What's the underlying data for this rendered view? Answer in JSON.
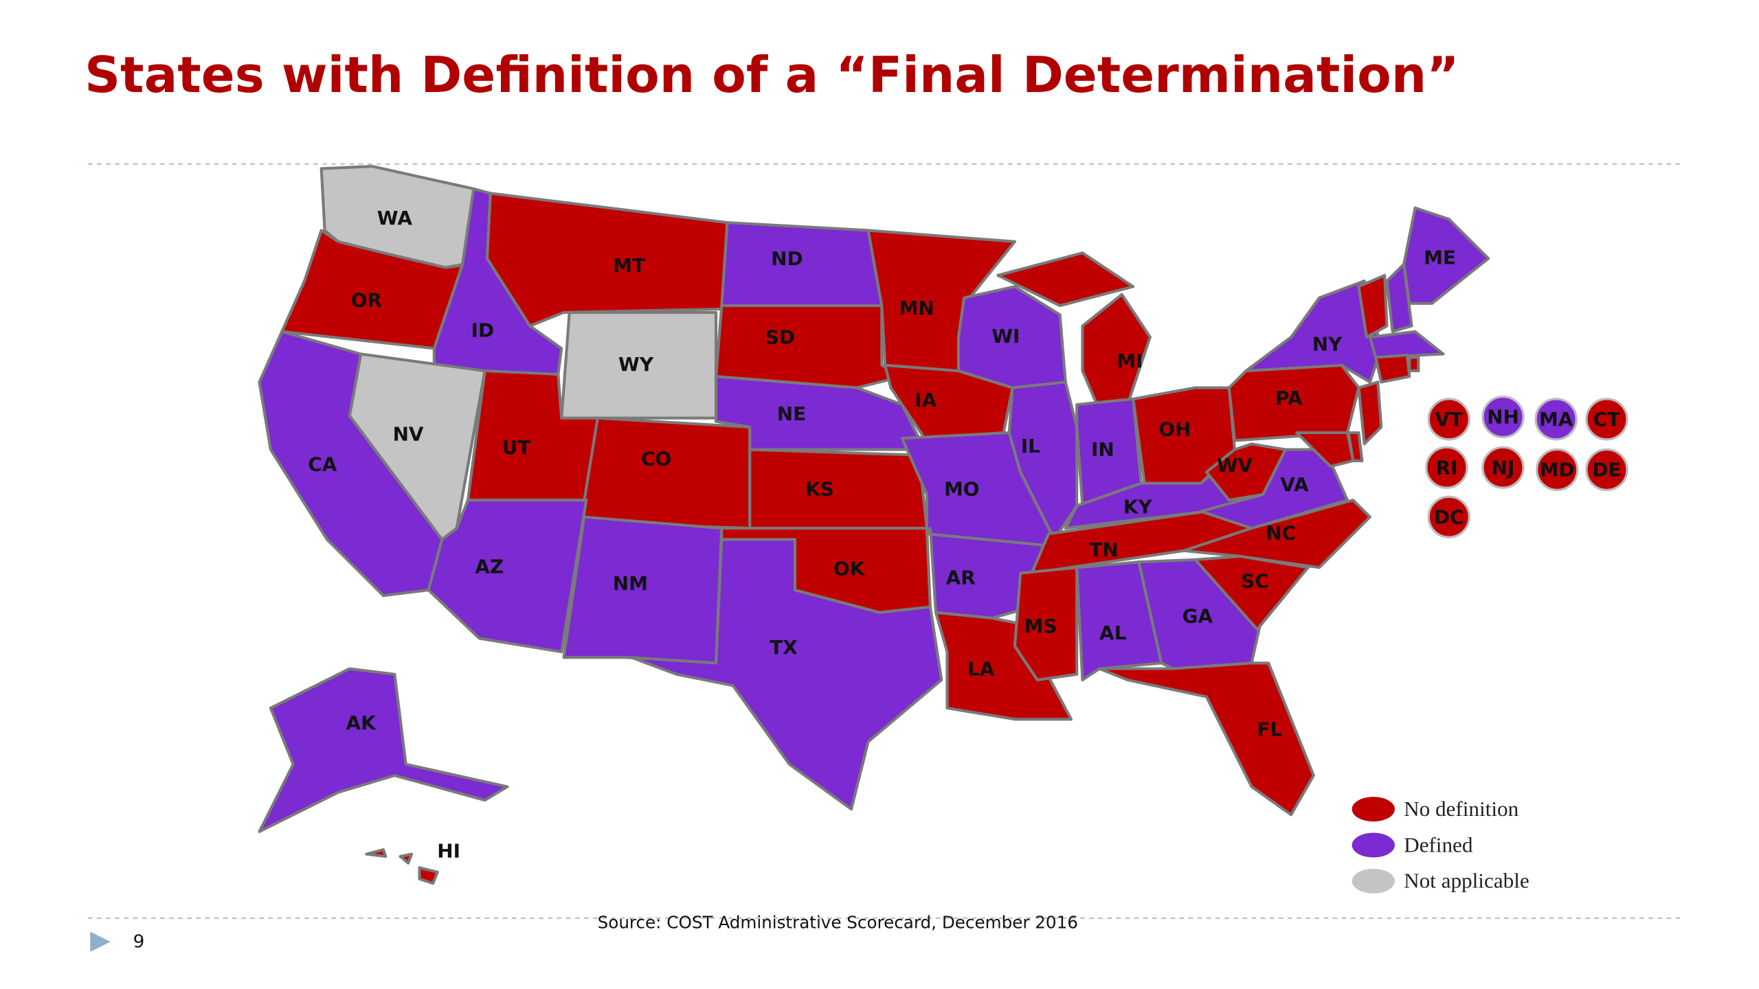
{
  "header": {
    "title": "States with Definition of a “Final Determination”"
  },
  "legend": [
    {
      "label": "No definition",
      "color": "#c00000"
    },
    {
      "label": "Defined",
      "color": "#7b2bd1"
    },
    {
      "label": "Not applicable",
      "color": "#c4c4c4"
    }
  ],
  "states": [
    {
      "label": "WA",
      "status": "Not applicable"
    },
    {
      "label": "OR",
      "status": "No definition"
    },
    {
      "label": "ID",
      "status": "Defined"
    },
    {
      "label": "MT",
      "status": "No definition"
    },
    {
      "label": "ND",
      "status": "Defined"
    },
    {
      "label": "SD",
      "status": "No definition"
    },
    {
      "label": "WY",
      "status": "Not applicable"
    },
    {
      "label": "NV",
      "status": "Not applicable"
    },
    {
      "label": "CA",
      "status": "Defined"
    },
    {
      "label": "UT",
      "status": "No definition"
    },
    {
      "label": "CO",
      "status": "No definition"
    },
    {
      "label": "AZ",
      "status": "Defined"
    },
    {
      "label": "NM",
      "status": "Defined"
    },
    {
      "label": "NE",
      "status": "Defined"
    },
    {
      "label": "KS",
      "status": "No definition"
    },
    {
      "label": "OK",
      "status": "No definition"
    },
    {
      "label": "TX",
      "status": "Defined"
    },
    {
      "label": "MN",
      "status": "No definition"
    },
    {
      "label": "IA",
      "status": "No definition"
    },
    {
      "label": "MO",
      "status": "Defined"
    },
    {
      "label": "AR",
      "status": "Defined"
    },
    {
      "label": "LA",
      "status": "No definition"
    },
    {
      "label": "WI",
      "status": "Defined"
    },
    {
      "label": "IL",
      "status": "Defined"
    },
    {
      "label": "MI",
      "status": "No definition"
    },
    {
      "label": "IN",
      "status": "Defined"
    },
    {
      "label": "OH",
      "status": "No definition"
    },
    {
      "label": "KY",
      "status": "Defined"
    },
    {
      "label": "TN",
      "status": "No definition"
    },
    {
      "label": "MS",
      "status": "No definition"
    },
    {
      "label": "AL",
      "status": "Defined"
    },
    {
      "label": "GA",
      "status": "Defined"
    },
    {
      "label": "FL",
      "status": "No definition"
    },
    {
      "label": "SC",
      "status": "No definition"
    },
    {
      "label": "NC",
      "status": "No definition"
    },
    {
      "label": "VA",
      "status": "Defined"
    },
    {
      "label": "WV",
      "status": "No definition"
    },
    {
      "label": "PA",
      "status": "No definition"
    },
    {
      "label": "NY",
      "status": "Defined"
    },
    {
      "label": "ME",
      "status": "Defined"
    },
    {
      "label": "AK",
      "status": "Defined"
    },
    {
      "label": "HI",
      "status": "No definition"
    },
    {
      "label": "VT",
      "status": "No definition"
    },
    {
      "label": "NH",
      "status": "Defined"
    },
    {
      "label": "MA",
      "status": "Defined"
    },
    {
      "label": "CT",
      "status": "No definition"
    },
    {
      "label": "RI",
      "status": "No definition"
    },
    {
      "label": "NJ",
      "status": "No definition"
    },
    {
      "label": "MD",
      "status": "No definition"
    },
    {
      "label": "DE",
      "status": "No definition"
    },
    {
      "label": "DC",
      "status": "No definition"
    }
  ],
  "source": "Source: COST Administrative Scorecard, December 2016",
  "page_number": "9"
}
